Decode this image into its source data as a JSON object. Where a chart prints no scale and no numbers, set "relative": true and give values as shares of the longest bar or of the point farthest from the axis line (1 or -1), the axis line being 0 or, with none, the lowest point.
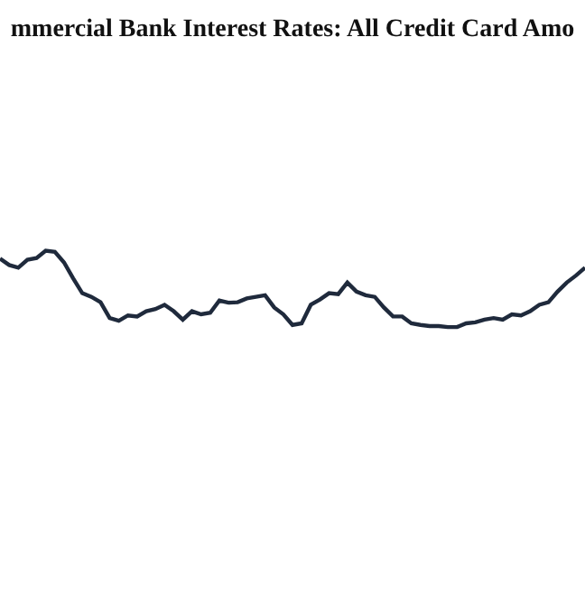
{
  "chart_data": {
    "type": "line",
    "title": "mmercial Bank Interest Rates: All Credit Card Amo",
    "relative": true,
    "marker": "none",
    "line_style": "solid",
    "categories": [
      null,
      null,
      null,
      null,
      null,
      null,
      null,
      null,
      null,
      null,
      null,
      null,
      null,
      null,
      null,
      null,
      null,
      null,
      null,
      null,
      null,
      null,
      null,
      null,
      null,
      null,
      null,
      null,
      null,
      null,
      null,
      null,
      null,
      null,
      null,
      null,
      null,
      null,
      null,
      null,
      null,
      null,
      null,
      null,
      null,
      null,
      null,
      null,
      null,
      null,
      null,
      null,
      null,
      null,
      null,
      null,
      null,
      null,
      null,
      null,
      null,
      null,
      null,
      null,
      null
    ],
    "series": [
      {
        "color": "#1f2a3c",
        "values": [
          0.896,
          0.813,
          0.778,
          0.882,
          0.903,
          1,
          0.986,
          0.847,
          0.639,
          0.444,
          0.396,
          0.326,
          0.118,
          0.083,
          0.153,
          0.139,
          0.208,
          0.236,
          0.292,
          0.208,
          0.097,
          0.208,
          0.167,
          0.188,
          0.347,
          0.319,
          0.326,
          0.375,
          0.396,
          0.417,
          0.257,
          0.167,
          0.028,
          0.049,
          0.292,
          0.361,
          0.444,
          0.431,
          0.583,
          0.465,
          0.417,
          0.396,
          0.257,
          0.139,
          0.139,
          0.049,
          0.028,
          0.014,
          0.014,
          0,
          0,
          0.049,
          0.063,
          0.097,
          0.118,
          0.097,
          0.167,
          0.153,
          0.208,
          0.292,
          0.326,
          0.465,
          0.583,
          0.674,
          0.778
        ]
      }
    ]
  }
}
